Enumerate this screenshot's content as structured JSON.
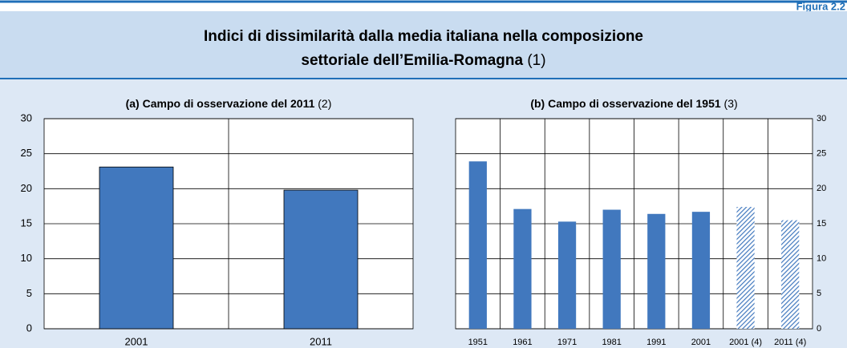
{
  "figure": {
    "label": "Figura 2.2",
    "title_line1": "Indici di dissimilarità dalla media italiana nella composizione",
    "title_line2": "settoriale dell’Emilia-Romagna",
    "title_note": "(1)"
  },
  "chart_data": [
    {
      "type": "bar",
      "title": "(a) Campo di osservazione del 2011",
      "title_note": "(2)",
      "categories": [
        "2001",
        "2011"
      ],
      "values": [
        23.1,
        19.8
      ],
      "color": "#4178be",
      "hatch": [
        false,
        false
      ],
      "ylim": [
        0,
        30
      ],
      "yticks": [
        0,
        5,
        10,
        15,
        20,
        25,
        30
      ],
      "grid": true,
      "yaxis": "left"
    },
    {
      "type": "bar",
      "title": "(b) Campo di osservazione del 1951",
      "title_note": "(3)",
      "categories": [
        "1951",
        "1961",
        "1971",
        "1981",
        "1991",
        "2001",
        "2001 (4)",
        "2011 (4)"
      ],
      "values": [
        23.9,
        17.1,
        15.3,
        17.0,
        16.4,
        16.7,
        17.4,
        15.5
      ],
      "color": "#4178be",
      "hatch": [
        false,
        false,
        false,
        false,
        false,
        false,
        true,
        true
      ],
      "ylim": [
        0,
        30
      ],
      "yticks": [
        0,
        5,
        10,
        15,
        20,
        25,
        30
      ],
      "grid": true,
      "yaxis": "right"
    }
  ]
}
